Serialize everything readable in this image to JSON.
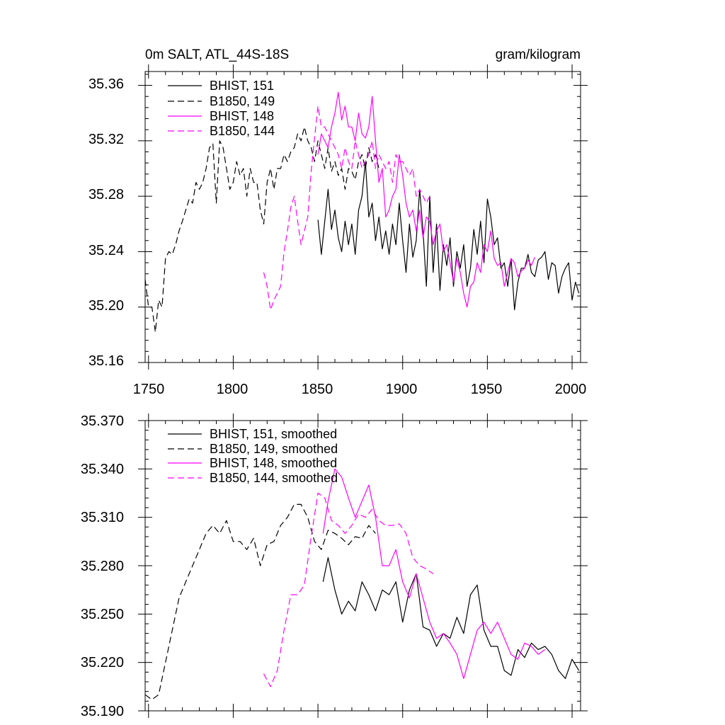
{
  "chart_data": [
    {
      "type": "line",
      "title_left": "0m SALT, ATL_44S-18S",
      "title_right": "gram/kilogram",
      "xlim": [
        1748,
        2005
      ],
      "ylim": [
        35.16,
        35.37
      ],
      "xticks": [
        1750,
        1800,
        1850,
        1900,
        1950,
        2000
      ],
      "xtick_labels": [
        "1750",
        "1800",
        "1850",
        "1900",
        "1950",
        "2000"
      ],
      "yticks": [
        35.16,
        35.2,
        35.24,
        35.28,
        35.32,
        35.36
      ],
      "ytick_labels": [
        "35.16",
        "35.20",
        "35.24",
        "35.28",
        "35.32",
        "35.36"
      ],
      "series": [
        {
          "name": "BHIST, 151",
          "color": "#000000",
          "dash": "solid",
          "x": [
            1850,
            1852,
            1854,
            1856,
            1858,
            1860,
            1862,
            1864,
            1866,
            1868,
            1870,
            1872,
            1874,
            1876,
            1878,
            1880,
            1882,
            1884,
            1886,
            1888,
            1890,
            1892,
            1894,
            1896,
            1898,
            1900,
            1902,
            1904,
            1906,
            1908,
            1910,
            1912,
            1914,
            1916,
            1918,
            1920,
            1922,
            1924,
            1926,
            1928,
            1930,
            1932,
            1934,
            1936,
            1938,
            1940,
            1942,
            1944,
            1946,
            1948,
            1950,
            1952,
            1954,
            1956,
            1958,
            1960,
            1962,
            1964,
            1966,
            1968,
            1970,
            1972,
            1974,
            1976,
            1978,
            1980,
            1982,
            1984,
            1986,
            1988,
            1990,
            1992,
            1994,
            1996,
            1998,
            2000,
            2002,
            2004
          ],
          "y": [
            35.263,
            35.238,
            35.262,
            35.285,
            35.256,
            35.27,
            35.25,
            35.24,
            35.262,
            35.245,
            35.26,
            35.238,
            35.27,
            35.28,
            35.305,
            35.265,
            35.275,
            35.248,
            35.265,
            35.242,
            35.255,
            35.238,
            35.26,
            35.245,
            35.275,
            35.248,
            35.225,
            35.26,
            35.236,
            35.248,
            35.285,
            35.255,
            35.215,
            35.28,
            35.225,
            35.26,
            35.212,
            35.245,
            35.23,
            35.25,
            35.215,
            35.24,
            35.228,
            35.245,
            35.215,
            35.228,
            35.256,
            35.238,
            35.262,
            35.232,
            35.278,
            35.265,
            35.245,
            35.25,
            35.228,
            35.232,
            35.215,
            35.235,
            35.198,
            35.218,
            35.228,
            35.228,
            35.238,
            35.225,
            35.222,
            35.234,
            35.236,
            35.24,
            35.22,
            35.232,
            35.23,
            35.21,
            35.222,
            35.228,
            35.232,
            35.205,
            35.218,
            35.21
          ]
        },
        {
          "name": "B1850, 149",
          "color": "#000000",
          "dash": "long",
          "x": [
            1748,
            1750,
            1752,
            1754,
            1756,
            1758,
            1760,
            1762,
            1764,
            1766,
            1768,
            1770,
            1772,
            1774,
            1776,
            1778,
            1780,
            1782,
            1784,
            1786,
            1788,
            1790,
            1792,
            1794,
            1796,
            1798,
            1800,
            1802,
            1804,
            1806,
            1808,
            1810,
            1812,
            1814,
            1816,
            1818,
            1820,
            1822,
            1824,
            1826,
            1828,
            1830,
            1832,
            1834,
            1836,
            1838,
            1840,
            1842,
            1844,
            1846,
            1848,
            1850,
            1852,
            1854,
            1856,
            1858,
            1860,
            1862,
            1864,
            1866,
            1868,
            1870,
            1872,
            1874,
            1876,
            1878,
            1880,
            1882,
            1884,
            1886
          ],
          "y": [
            35.22,
            35.2,
            35.2,
            35.182,
            35.205,
            35.2,
            35.235,
            35.24,
            35.238,
            35.245,
            35.255,
            35.262,
            35.27,
            35.278,
            35.275,
            35.29,
            35.285,
            35.29,
            35.3,
            35.315,
            35.318,
            35.275,
            35.32,
            35.315,
            35.3,
            35.285,
            35.29,
            35.305,
            35.295,
            35.3,
            35.28,
            35.3,
            35.29,
            35.29,
            35.27,
            35.26,
            35.29,
            35.3,
            35.285,
            35.3,
            35.3,
            35.31,
            35.305,
            35.312,
            35.315,
            35.325,
            35.32,
            35.33,
            35.32,
            35.315,
            35.305,
            35.32,
            35.31,
            35.3,
            35.315,
            35.298,
            35.305,
            35.295,
            35.3,
            35.285,
            35.3,
            35.298,
            35.292,
            35.305,
            35.31,
            35.3,
            35.315,
            35.305,
            35.31,
            35.3
          ]
        },
        {
          "name": "BHIST, 148",
          "color": "#ff00ff",
          "dash": "solid",
          "x": [
            1850,
            1852,
            1854,
            1856,
            1858,
            1860,
            1862,
            1864,
            1866,
            1868,
            1870,
            1872,
            1874,
            1876,
            1878,
            1880,
            1882,
            1884,
            1886,
            1888,
            1890,
            1892,
            1894,
            1896,
            1898,
            1900,
            1902,
            1904,
            1906,
            1908,
            1910,
            1912,
            1914,
            1916,
            1918,
            1920,
            1922,
            1924,
            1926,
            1928,
            1930,
            1932,
            1934,
            1936,
            1938,
            1940,
            1942,
            1944,
            1946,
            1948,
            1950,
            1952,
            1954,
            1956,
            1958,
            1960,
            1962,
            1964,
            1966,
            1968,
            1970,
            1972,
            1974,
            1976,
            1978
          ],
          "y": [
            35.31,
            35.325,
            35.32,
            35.315,
            35.33,
            35.34,
            35.355,
            35.335,
            35.345,
            35.33,
            35.33,
            35.32,
            35.34,
            35.325,
            35.322,
            35.33,
            35.352,
            35.32,
            35.29,
            35.3,
            35.265,
            35.27,
            35.28,
            35.285,
            35.31,
            35.295,
            35.275,
            35.265,
            35.27,
            35.255,
            35.27,
            35.25,
            35.265,
            35.262,
            35.245,
            35.255,
            35.26,
            35.24,
            35.245,
            35.232,
            35.218,
            35.235,
            35.225,
            35.21,
            35.2,
            35.215,
            35.218,
            35.232,
            35.225,
            35.245,
            35.24,
            35.255,
            35.235,
            35.23,
            35.232,
            35.215,
            35.225,
            35.235,
            35.232,
            35.222,
            35.226,
            35.228,
            35.234,
            35.23,
            35.236
          ]
        },
        {
          "name": "B1850, 144",
          "color": "#ff00ff",
          "dash": "long",
          "x": [
            1818,
            1820,
            1822,
            1824,
            1826,
            1828,
            1830,
            1832,
            1834,
            1836,
            1838,
            1840,
            1842,
            1844,
            1846,
            1848,
            1850,
            1852,
            1854,
            1856,
            1858,
            1860,
            1862,
            1864,
            1866,
            1868,
            1870,
            1872,
            1874,
            1876,
            1878,
            1880,
            1882,
            1884,
            1886,
            1888,
            1890,
            1892,
            1894,
            1896,
            1898,
            1900,
            1902,
            1904,
            1906,
            1908,
            1910,
            1912,
            1914,
            1916,
            1918
          ],
          "y": [
            35.225,
            35.215,
            35.198,
            35.205,
            35.21,
            35.215,
            35.24,
            35.255,
            35.272,
            35.28,
            35.262,
            35.245,
            35.255,
            35.265,
            35.298,
            35.322,
            35.345,
            35.33,
            35.33,
            35.325,
            35.32,
            35.315,
            35.31,
            35.3,
            35.315,
            35.305,
            35.3,
            35.32,
            35.31,
            35.3,
            35.305,
            35.31,
            35.32,
            35.3,
            35.31,
            35.305,
            35.3,
            35.305,
            35.29,
            35.31,
            35.305,
            35.305,
            35.3,
            35.295,
            35.3,
            35.28,
            35.285,
            35.28,
            35.275,
            35.28,
            35.28
          ]
        }
      ]
    },
    {
      "type": "line",
      "xlim": [
        1748,
        2005
      ],
      "ylim": [
        35.19,
        35.37
      ],
      "xticks": [
        1750,
        1800,
        1850,
        1900,
        1950,
        2000
      ],
      "yticks": [
        35.19,
        35.22,
        35.25,
        35.28,
        35.31,
        35.34,
        35.37
      ],
      "ytick_labels": [
        "35.190",
        "35.220",
        "35.250",
        "35.280",
        "35.310",
        "35.340",
        "35.370"
      ],
      "series": [
        {
          "name": "BHIST, 151, smoothed",
          "color": "#000000",
          "dash": "solid",
          "x": [
            1853,
            1856,
            1860,
            1864,
            1868,
            1872,
            1876,
            1880,
            1884,
            1888,
            1892,
            1896,
            1900,
            1904,
            1908,
            1912,
            1916,
            1920,
            1924,
            1928,
            1932,
            1936,
            1940,
            1944,
            1948,
            1952,
            1956,
            1960,
            1964,
            1968,
            1972,
            1976,
            1980,
            1984,
            1988,
            1992,
            1996,
            2000,
            2004
          ],
          "y": [
            35.27,
            35.285,
            35.265,
            35.25,
            35.258,
            35.252,
            35.27,
            35.262,
            35.252,
            35.265,
            35.262,
            35.27,
            35.245,
            35.265,
            35.275,
            35.242,
            35.24,
            35.23,
            35.238,
            35.235,
            35.248,
            35.238,
            35.262,
            35.268,
            35.24,
            35.23,
            35.23,
            35.215,
            35.212,
            35.228,
            35.223,
            35.232,
            35.228,
            35.23,
            35.225,
            35.215,
            35.21,
            35.222,
            35.215
          ]
        },
        {
          "name": "B1850, 149, smoothed",
          "color": "#000000",
          "dash": "long",
          "x": [
            1748,
            1752,
            1756,
            1760,
            1764,
            1768,
            1772,
            1776,
            1780,
            1784,
            1788,
            1792,
            1796,
            1800,
            1804,
            1808,
            1812,
            1816,
            1820,
            1824,
            1828,
            1832,
            1836,
            1840,
            1844,
            1848,
            1852,
            1856,
            1860,
            1864,
            1868,
            1872,
            1876,
            1880,
            1884
          ],
          "y": [
            35.2,
            35.197,
            35.2,
            35.22,
            35.24,
            35.26,
            35.27,
            35.28,
            35.29,
            35.3,
            35.305,
            35.3,
            35.308,
            35.295,
            35.295,
            35.29,
            35.297,
            35.28,
            35.293,
            35.295,
            35.305,
            35.31,
            35.318,
            35.318,
            35.31,
            35.295,
            35.29,
            35.302,
            35.3,
            35.297,
            35.293,
            35.298,
            35.297,
            35.305,
            35.3
          ]
        },
        {
          "name": "BHIST, 148, smoothed",
          "color": "#ff00ff",
          "dash": "solid",
          "x": [
            1853,
            1856,
            1860,
            1864,
            1868,
            1872,
            1876,
            1880,
            1884,
            1888,
            1892,
            1896,
            1900,
            1904,
            1908,
            1912,
            1916,
            1920,
            1924,
            1928,
            1932,
            1936,
            1940,
            1944,
            1948,
            1952,
            1956,
            1960,
            1964,
            1968,
            1972,
            1976,
            1980,
            1984
          ],
          "y": [
            35.3,
            35.32,
            35.34,
            35.335,
            35.322,
            35.31,
            35.32,
            35.33,
            35.31,
            35.28,
            35.28,
            35.29,
            35.27,
            35.26,
            35.275,
            35.26,
            35.245,
            35.235,
            35.238,
            35.232,
            35.225,
            35.21,
            35.225,
            35.24,
            35.245,
            35.238,
            35.245,
            35.235,
            35.225,
            35.222,
            35.232,
            35.23,
            35.225,
            35.228
          ]
        },
        {
          "name": "B1850, 144, smoothed",
          "color": "#ff00ff",
          "dash": "long",
          "x": [
            1818,
            1822,
            1826,
            1830,
            1834,
            1838,
            1842,
            1846,
            1850,
            1854,
            1858,
            1862,
            1866,
            1870,
            1874,
            1878,
            1882,
            1886,
            1890,
            1894,
            1898,
            1902,
            1906,
            1910,
            1914,
            1918
          ],
          "y": [
            35.213,
            35.205,
            35.215,
            35.24,
            35.262,
            35.262,
            35.268,
            35.298,
            35.325,
            35.322,
            35.308,
            35.305,
            35.3,
            35.305,
            35.312,
            35.31,
            35.315,
            35.308,
            35.305,
            35.305,
            35.306,
            35.3,
            35.285,
            35.28,
            35.278,
            35.275
          ]
        }
      ]
    }
  ]
}
